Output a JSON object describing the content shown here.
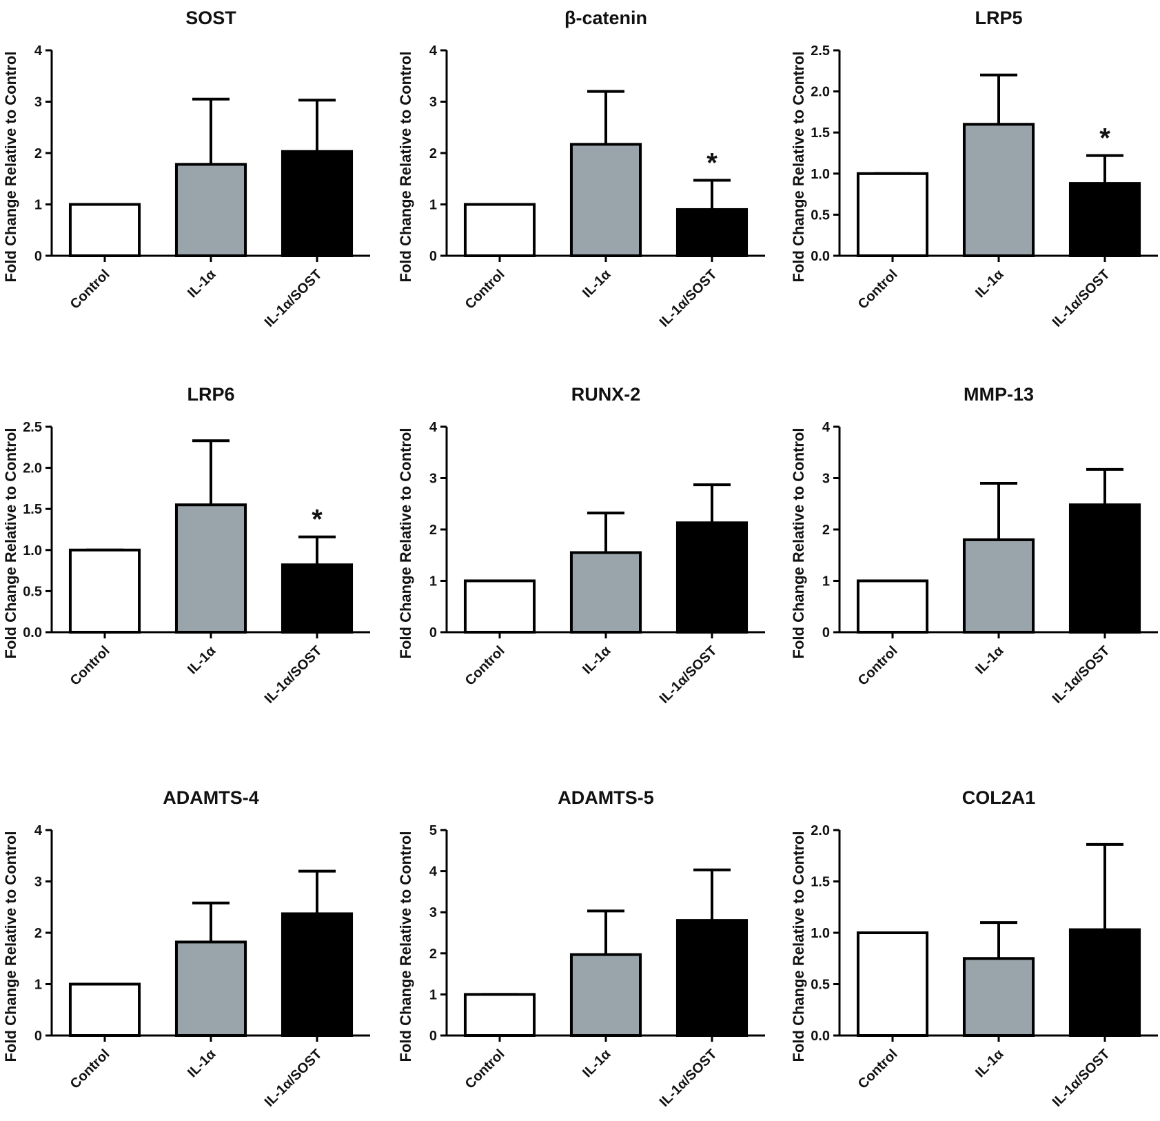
{
  "chart_data": [
    {
      "type": "bar",
      "title": "SOST",
      "ylabel": "Fold Change Relative to Control",
      "categories": [
        "Control",
        "IL-1α",
        "IL-1α/SOST"
      ],
      "values": [
        1,
        1.78,
        2.03
      ],
      "errors": [
        0,
        1.27,
        1.0
      ],
      "colors": [
        "#ffffff",
        "#9aa5ab",
        "#000000"
      ],
      "ylim": [
        0,
        4
      ],
      "yticks": [
        0,
        1,
        2,
        3,
        4
      ],
      "significance": [
        null,
        null,
        null
      ]
    },
    {
      "type": "bar",
      "title": "β-catenin",
      "ylabel": "Fold Change Relative to Control",
      "categories": [
        "Control",
        "IL-1α",
        "IL-1α/SOST"
      ],
      "values": [
        1,
        2.17,
        0.9
      ],
      "errors": [
        0,
        1.03,
        0.57
      ],
      "colors": [
        "#ffffff",
        "#9aa5ab",
        "#000000"
      ],
      "ylim": [
        0,
        4
      ],
      "yticks": [
        0,
        1,
        2,
        3,
        4
      ],
      "significance": [
        null,
        null,
        "*"
      ]
    },
    {
      "type": "bar",
      "title": "LRP5",
      "ylabel": "Fold Change Relative to Control",
      "categories": [
        "Control",
        "IL-1α",
        "IL-1α/SOST"
      ],
      "values": [
        1,
        1.6,
        0.88
      ],
      "errors": [
        0,
        0.6,
        0.34
      ],
      "colors": [
        "#ffffff",
        "#9aa5ab",
        "#000000"
      ],
      "ylim": [
        0,
        2.5
      ],
      "yticks": [
        {
          "value": 0,
          "label": "0.0"
        },
        0.5,
        {
          "value": 1,
          "label": "1.0"
        },
        1.5,
        {
          "value": 2,
          "label": "2.0"
        },
        2.5
      ],
      "significance": [
        null,
        null,
        "*"
      ]
    },
    {
      "type": "bar",
      "title": "LRP6",
      "ylabel": "Fold Change Relative to Control",
      "categories": [
        "Control",
        "IL-1α",
        "IL-1α/SOST"
      ],
      "values": [
        1,
        1.55,
        0.82
      ],
      "errors": [
        0,
        0.78,
        0.34
      ],
      "colors": [
        "#ffffff",
        "#9aa5ab",
        "#000000"
      ],
      "ylim": [
        0,
        2.5
      ],
      "yticks": [
        {
          "value": 0,
          "label": "0.0"
        },
        0.5,
        {
          "value": 1,
          "label": "1.0"
        },
        1.5,
        {
          "value": 2,
          "label": "2.0"
        },
        2.5
      ],
      "significance": [
        null,
        null,
        "*"
      ]
    },
    {
      "type": "bar",
      "title": "RUNX-2",
      "ylabel": "Fold Change Relative to Control",
      "categories": [
        "Control",
        "IL-1α",
        "IL-1α/SOST"
      ],
      "values": [
        1,
        1.55,
        2.13
      ],
      "errors": [
        0,
        0.77,
        0.74
      ],
      "colors": [
        "#ffffff",
        "#9aa5ab",
        "#000000"
      ],
      "ylim": [
        0,
        4
      ],
      "yticks": [
        0,
        1,
        2,
        3,
        4
      ],
      "significance": [
        null,
        null,
        null
      ]
    },
    {
      "type": "bar",
      "title": "MMP-13",
      "ylabel": "Fold Change Relative to Control",
      "categories": [
        "Control",
        "IL-1α",
        "IL-1α/SOST"
      ],
      "values": [
        1,
        1.8,
        2.48
      ],
      "errors": [
        0,
        1.1,
        0.69
      ],
      "colors": [
        "#ffffff",
        "#9aa5ab",
        "#000000"
      ],
      "ylim": [
        0,
        4
      ],
      "yticks": [
        0,
        1,
        2,
        3,
        4
      ],
      "significance": [
        null,
        null,
        null
      ]
    },
    {
      "type": "bar",
      "title": "ADAMTS-4",
      "ylabel": "Fold Change Relative to Control",
      "categories": [
        "Control",
        "IL-1α",
        "IL-1α/SOST"
      ],
      "values": [
        1,
        1.82,
        2.37
      ],
      "errors": [
        0,
        0.76,
        0.83
      ],
      "colors": [
        "#ffffff",
        "#9aa5ab",
        "#000000"
      ],
      "ylim": [
        0,
        4
      ],
      "yticks": [
        0,
        1,
        2,
        3,
        4
      ],
      "significance": [
        null,
        null,
        null
      ]
    },
    {
      "type": "bar",
      "title": "ADAMTS-5",
      "ylabel": "Fold Change Relative to Control",
      "categories": [
        "Control",
        "IL-1α",
        "IL-1α/SOST"
      ],
      "values": [
        1,
        1.97,
        2.8
      ],
      "errors": [
        0,
        1.06,
        1.23
      ],
      "colors": [
        "#ffffff",
        "#9aa5ab",
        "#000000"
      ],
      "ylim": [
        0,
        5
      ],
      "yticks": [
        0,
        1,
        2,
        3,
        4,
        5
      ],
      "significance": [
        null,
        null,
        null
      ]
    },
    {
      "type": "bar",
      "title": "COL2A1",
      "ylabel": "Fold Change Relative to Control",
      "categories": [
        "Control",
        "IL-1α",
        "IL-1α/SOST"
      ],
      "values": [
        1,
        0.75,
        1.03
      ],
      "errors": [
        0,
        0.35,
        0.83
      ],
      "colors": [
        "#ffffff",
        "#9aa5ab",
        "#000000"
      ],
      "ylim": [
        0,
        2
      ],
      "yticks": [
        {
          "value": 0,
          "label": "0.0"
        },
        0.5,
        {
          "value": 1,
          "label": "1.0"
        },
        1.5,
        {
          "value": 2,
          "label": "2.0"
        }
      ],
      "significance": [
        null,
        null,
        null
      ]
    }
  ]
}
